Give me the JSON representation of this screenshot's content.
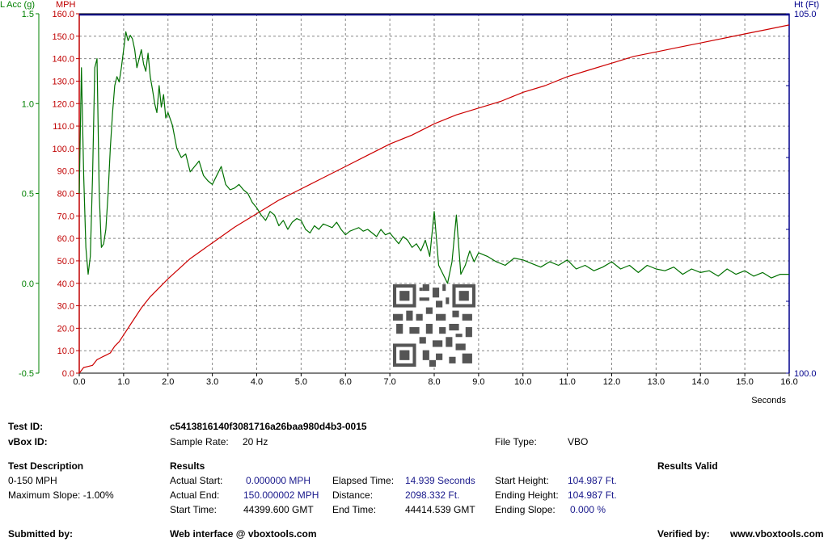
{
  "chart_data": {
    "type": "line",
    "xlabel": "Seconds",
    "xlim": [
      0,
      16
    ],
    "x_ticks": [
      "0.0",
      "1.0",
      "2.0",
      "3.0",
      "4.0",
      "5.0",
      "6.0",
      "7.0",
      "8.0",
      "9.0",
      "10.0",
      "11.0",
      "12.0",
      "13.0",
      "14.0",
      "15.0",
      "16.0"
    ],
    "grid": true,
    "axes": {
      "lacc": {
        "label": "L Acc (g)",
        "range": [
          -0.5,
          1.5
        ],
        "ticks": [
          "1.5",
          "1.0",
          "0.5",
          "0.0",
          "-0.5"
        ],
        "color": "#008000"
      },
      "mph": {
        "label": "MPH",
        "range": [
          0,
          160
        ],
        "ticks": [
          "160.0",
          "150.0",
          "140.0",
          "130.0",
          "120.0",
          "110.0",
          "100.0",
          "90.0",
          "80.0",
          "70.0",
          "60.0",
          "50.0",
          "40.0",
          "30.0",
          "20.0",
          "10.0",
          "0.0"
        ],
        "color": "#c00000"
      },
      "ht": {
        "label": "Ht (Ft)",
        "range": [
          100.0,
          105.0
        ],
        "ticks": [
          "105.0",
          "100.0"
        ],
        "color": "#00008b"
      }
    },
    "series": [
      {
        "axis": "mph",
        "color": "#cc0000",
        "x": [
          0,
          0.1,
          0.2,
          0.3,
          0.4,
          0.5,
          0.6,
          0.7,
          0.8,
          0.9,
          1.0,
          1.2,
          1.4,
          1.6,
          1.8,
          2.0,
          2.5,
          3.0,
          3.5,
          4.0,
          4.5,
          5.0,
          5.5,
          6.0,
          6.5,
          7.0,
          7.5,
          8.0,
          8.5,
          9.0,
          9.5,
          10.0,
          10.5,
          11.0,
          11.5,
          12.0,
          12.5,
          13.0,
          13.5,
          14.0,
          14.5,
          15.0,
          15.5,
          16.0
        ],
        "y": [
          0,
          2.5,
          3,
          3.5,
          6,
          7,
          8,
          9,
          12,
          14,
          17,
          23,
          29,
          34,
          38,
          42,
          51,
          58,
          65,
          71,
          77,
          82,
          87,
          92,
          97,
          102,
          106,
          111,
          115,
          118,
          121,
          125,
          128,
          132,
          135,
          138,
          141,
          143,
          145,
          147,
          149,
          151,
          153,
          155
        ]
      },
      {
        "axis": "lacc",
        "color": "#007000",
        "x": [
          0,
          0.05,
          0.1,
          0.15,
          0.2,
          0.25,
          0.3,
          0.35,
          0.4,
          0.45,
          0.5,
          0.55,
          0.6,
          0.65,
          0.7,
          0.75,
          0.8,
          0.85,
          0.9,
          0.95,
          1.0,
          1.05,
          1.1,
          1.15,
          1.2,
          1.25,
          1.3,
          1.35,
          1.4,
          1.45,
          1.5,
          1.55,
          1.6,
          1.65,
          1.7,
          1.75,
          1.8,
          1.85,
          1.9,
          1.95,
          2.0,
          2.1,
          2.2,
          2.3,
          2.4,
          2.5,
          2.6,
          2.7,
          2.8,
          2.9,
          3.0,
          3.1,
          3.2,
          3.3,
          3.4,
          3.5,
          3.6,
          3.7,
          3.8,
          3.9,
          4.0,
          4.1,
          4.2,
          4.3,
          4.4,
          4.5,
          4.6,
          4.7,
          4.8,
          4.9,
          5.0,
          5.1,
          5.2,
          5.3,
          5.4,
          5.5,
          5.6,
          5.7,
          5.8,
          5.9,
          6.0,
          6.1,
          6.2,
          6.3,
          6.4,
          6.5,
          6.6,
          6.7,
          6.8,
          6.9,
          7.0,
          7.1,
          7.2,
          7.3,
          7.4,
          7.5,
          7.6,
          7.7,
          7.8,
          7.9,
          8.0,
          8.1,
          8.2,
          8.3,
          8.4,
          8.5,
          8.6,
          8.7,
          8.8,
          8.9,
          9.0,
          9.2,
          9.4,
          9.6,
          9.8,
          10.0,
          10.2,
          10.4,
          10.6,
          10.8,
          11.0,
          11.2,
          11.4,
          11.6,
          11.8,
          12.0,
          12.2,
          12.4,
          12.6,
          12.8,
          13.0,
          13.2,
          13.4,
          13.6,
          13.8,
          14.0,
          14.2,
          14.4,
          14.6,
          14.8,
          15.0,
          15.2,
          15.4,
          15.6,
          15.8,
          16.0
        ],
        "y": [
          0.5,
          1.2,
          0.6,
          0.2,
          0.05,
          0.15,
          0.6,
          1.2,
          1.25,
          0.5,
          0.2,
          0.22,
          0.3,
          0.5,
          0.75,
          0.95,
          1.1,
          1.15,
          1.12,
          1.2,
          1.3,
          1.4,
          1.35,
          1.38,
          1.36,
          1.3,
          1.2,
          1.25,
          1.3,
          1.22,
          1.18,
          1.28,
          1.15,
          1.08,
          1.0,
          0.95,
          1.1,
          0.98,
          1.05,
          0.92,
          0.95,
          0.88,
          0.75,
          0.7,
          0.72,
          0.62,
          0.65,
          0.68,
          0.6,
          0.57,
          0.55,
          0.6,
          0.65,
          0.55,
          0.52,
          0.53,
          0.55,
          0.52,
          0.5,
          0.45,
          0.42,
          0.38,
          0.35,
          0.4,
          0.38,
          0.32,
          0.35,
          0.3,
          0.34,
          0.36,
          0.35,
          0.3,
          0.28,
          0.32,
          0.3,
          0.33,
          0.32,
          0.31,
          0.34,
          0.3,
          0.27,
          0.29,
          0.3,
          0.31,
          0.29,
          0.3,
          0.28,
          0.26,
          0.3,
          0.27,
          0.28,
          0.25,
          0.22,
          0.26,
          0.24,
          0.2,
          0.22,
          0.18,
          0.24,
          0.15,
          0.4,
          0.1,
          0.05,
          0.0,
          0.12,
          0.38,
          0.05,
          0.1,
          0.18,
          0.12,
          0.17,
          0.15,
          0.12,
          0.1,
          0.14,
          0.13,
          0.11,
          0.09,
          0.12,
          0.1,
          0.13,
          0.08,
          0.1,
          0.07,
          0.09,
          0.12,
          0.08,
          0.1,
          0.06,
          0.1,
          0.08,
          0.07,
          0.09,
          0.05,
          0.08,
          0.06,
          0.07,
          0.04,
          0.08,
          0.05,
          0.07,
          0.04,
          0.06,
          0.03,
          0.05,
          0.05
        ]
      },
      {
        "axis": "ht",
        "color": "#00008b",
        "x": [
          0,
          16
        ],
        "y": [
          104.987,
          104.987
        ]
      }
    ]
  },
  "report": {
    "test_id_label": "Test ID:",
    "test_id_value": "c5413816140f3081716a26baa980d4b3-0015",
    "vbox_id_label": "vBox ID:",
    "sample_rate_label": "Sample Rate:",
    "sample_rate_value": "20 Hz",
    "file_type_label": "File Type:",
    "file_type_value": "VBO",
    "test_desc_heading": "Test Description",
    "test_desc_line1": "0-150 MPH",
    "test_desc_line2": "Maximum Slope:  -1.00%",
    "results_heading": "Results",
    "results_valid": "Results Valid",
    "actual_start_label": "Actual Start:",
    "actual_start_value": "0.000000 MPH",
    "actual_end_label": "Actual End:",
    "actual_end_value": "150.000002 MPH",
    "start_time_label": "Start Time:",
    "start_time_value": "44399.600 GMT",
    "elapsed_label": "Elapsed Time:",
    "elapsed_value": "14.939 Seconds",
    "distance_label": "Distance:",
    "distance_value": "2098.332 Ft.",
    "end_time_label": "End Time:",
    "end_time_value": "44414.539 GMT",
    "start_height_label": "Start Height:",
    "start_height_value": "104.987 Ft.",
    "ending_height_label": "Ending Height:",
    "ending_height_value": "104.987 Ft.",
    "ending_slope_label": "Ending Slope:",
    "ending_slope_value": "0.000 %",
    "submitted_label": "Submitted by:",
    "web_interface": "Web interface @ vboxtools.com",
    "verified_label": "Verified by:",
    "verified_value": "www.vboxtools.com"
  }
}
